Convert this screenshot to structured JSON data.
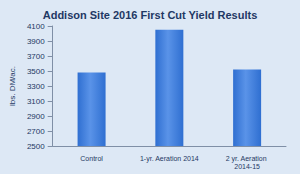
{
  "chart_data": {
    "type": "bar",
    "title": "Addison Site 2016 First Cut Yield Results",
    "y_label": "lbs. DM/ac.",
    "categories": [
      "Control",
      "1-yr. Aeration 2014",
      "2 yr. Aeration 2014-15"
    ],
    "values": [
      3480,
      4050,
      3520
    ],
    "color": "#2f6fd1",
    "ylim": [
      2500,
      4100
    ],
    "yticks": [
      2500,
      2700,
      2900,
      3100,
      3300,
      3500,
      3700,
      3900,
      4100
    ],
    "grid": false
  }
}
